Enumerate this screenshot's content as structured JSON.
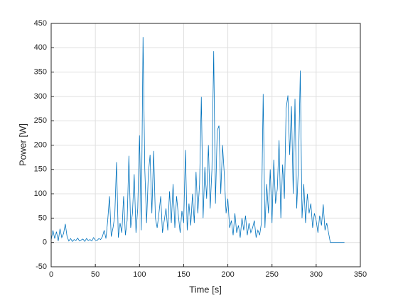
{
  "chart_data": {
    "type": "line",
    "xlabel": "Time [s]",
    "ylabel": "Power [W]",
    "xlim": [
      0,
      350
    ],
    "ylim": [
      -50,
      450
    ],
    "xticks": [
      0,
      50,
      100,
      150,
      200,
      250,
      300,
      350
    ],
    "yticks": [
      -50,
      0,
      50,
      100,
      150,
      200,
      250,
      300,
      350,
      400,
      450
    ],
    "grid": true,
    "series": [
      {
        "color": "#0072bd",
        "x": [
          0,
          2,
          4,
          6,
          8,
          10,
          12,
          14,
          16,
          18,
          20,
          22,
          24,
          26,
          28,
          30,
          32,
          34,
          36,
          38,
          40,
          42,
          44,
          46,
          48,
          50,
          52,
          54,
          56,
          58,
          60,
          62,
          64,
          66,
          68,
          70,
          72,
          74,
          76,
          78,
          80,
          82,
          84,
          86,
          88,
          90,
          92,
          94,
          96,
          98,
          100,
          102,
          104,
          106,
          108,
          110,
          112,
          114,
          116,
          118,
          120,
          122,
          124,
          126,
          128,
          130,
          132,
          134,
          136,
          138,
          140,
          142,
          144,
          146,
          148,
          150,
          152,
          154,
          156,
          158,
          160,
          162,
          164,
          166,
          168,
          170,
          172,
          174,
          176,
          178,
          180,
          182,
          184,
          186,
          188,
          190,
          192,
          194,
          196,
          198,
          200,
          202,
          204,
          206,
          208,
          210,
          212,
          214,
          216,
          218,
          220,
          222,
          224,
          226,
          228,
          230,
          232,
          234,
          236,
          238,
          240,
          242,
          244,
          246,
          248,
          250,
          252,
          254,
          256,
          258,
          260,
          262,
          264,
          266,
          268,
          270,
          272,
          274,
          276,
          278,
          280,
          282,
          284,
          286,
          288,
          290,
          292,
          294,
          296,
          298,
          300,
          302,
          304,
          306,
          308,
          310,
          312,
          314,
          316,
          318,
          320,
          322,
          324,
          326,
          328,
          330,
          332
        ],
        "values": [
          5,
          25,
          8,
          22,
          3,
          28,
          10,
          18,
          38,
          12,
          3,
          8,
          2,
          6,
          4,
          9,
          3,
          5,
          7,
          2,
          8,
          4,
          6,
          3,
          10,
          5,
          4,
          8,
          6,
          12,
          25,
          8,
          45,
          95,
          12,
          30,
          55,
          165,
          10,
          40,
          20,
          95,
          15,
          45,
          178,
          30,
          60,
          140,
          20,
          70,
          220,
          25,
          422,
          150,
          40,
          140,
          180,
          60,
          188,
          50,
          30,
          60,
          95,
          20,
          45,
          70,
          25,
          105,
          40,
          120,
          30,
          95,
          55,
          20,
          65,
          40,
          190,
          25,
          80,
          35,
          100,
          40,
          145,
          60,
          120,
          299,
          50,
          155,
          90,
          200,
          70,
          150,
          393,
          80,
          230,
          240,
          100,
          200,
          140,
          60,
          90,
          30,
          45,
          15,
          60,
          20,
          35,
          10,
          50,
          25,
          55,
          15,
          40,
          20,
          30,
          45,
          10,
          25,
          15,
          40,
          305,
          30,
          120,
          60,
          150,
          40,
          170,
          80,
          110,
          210,
          50,
          160,
          90,
          275,
          302,
          180,
          280,
          100,
          295,
          70,
          160,
          353,
          50,
          120,
          40,
          100,
          60,
          80,
          30,
          60,
          45,
          20,
          55,
          35,
          78,
          25,
          40,
          20,
          0,
          0,
          0,
          0,
          0,
          0,
          0,
          0,
          0
        ]
      }
    ]
  }
}
